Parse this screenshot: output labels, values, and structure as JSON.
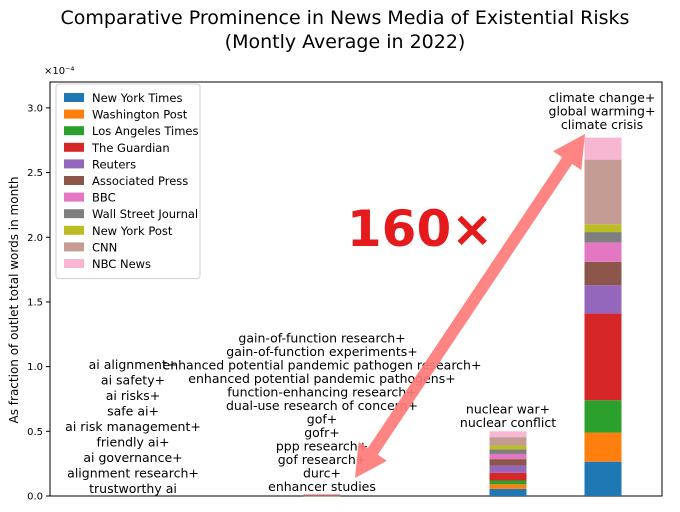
{
  "chart_data": {
    "type": "bar",
    "stacked": true,
    "title": "Comparative Prominence in News Media of Existential Risks",
    "subtitle": "(Montly Average in 2022)",
    "ylabel": "As fraction of outlet total words in month",
    "y_multiplier": "×10⁻⁴",
    "ylim": [
      0,
      3.2
    ],
    "yticks": [
      "0.0",
      "0.5",
      "1.0",
      "1.5",
      "2.0",
      "2.5",
      "3.0"
    ],
    "legend_position": "upper-left",
    "grid": false,
    "series": [
      {
        "name": "New York Times",
        "color": "#1f77b4",
        "values": [
          0.0,
          0.0015,
          0.055,
          0.265
        ]
      },
      {
        "name": "Washington Post",
        "color": "#ff7f0e",
        "values": [
          0.0,
          0.0015,
          0.035,
          0.225
        ]
      },
      {
        "name": "Los Angeles Times",
        "color": "#2ca02c",
        "values": [
          0.0,
          0.0015,
          0.03,
          0.25
        ]
      },
      {
        "name": "The Guardian",
        "color": "#d62728",
        "values": [
          0.0,
          0.0015,
          0.06,
          0.67
        ]
      },
      {
        "name": "Reuters",
        "color": "#9467bd",
        "values": [
          0.0,
          0.0015,
          0.055,
          0.22
        ]
      },
      {
        "name": "Associated Press",
        "color": "#8c564b",
        "values": [
          0.0,
          0.0015,
          0.05,
          0.18
        ]
      },
      {
        "name": "BBC",
        "color": "#e377c2",
        "values": [
          0.0,
          0.0015,
          0.04,
          0.15
        ]
      },
      {
        "name": "Wall Street Journal",
        "color": "#7f7f7f",
        "values": [
          0.0,
          0.0015,
          0.035,
          0.08
        ]
      },
      {
        "name": "New York Post",
        "color": "#bcbd22",
        "values": [
          0.0,
          0.0015,
          0.03,
          0.06
        ]
      },
      {
        "name": "CNN",
        "color": "#c49c94",
        "values": [
          0.0,
          0.0015,
          0.065,
          0.5
        ]
      },
      {
        "name": "NBC News",
        "color": "#f7b6d2",
        "values": [
          0.0,
          0.0015,
          0.045,
          0.17
        ]
      }
    ],
    "bar_labels": [
      [
        "ai alignment+",
        "ai safety+",
        "ai risks+",
        "safe ai+",
        "ai risk management+",
        "friendly ai+",
        "ai governance+",
        "alignment research+",
        "trustworthy ai"
      ],
      [
        "gain-of-function research+",
        "gain-of-function experiments+",
        "enhanced potential pandemic pathogen research+",
        "enhanced potential pandemic pathogens+",
        "function-enhancing research+",
        "dual-use research of concern+",
        "gof+",
        "gofr+",
        "ppp research+",
        "gof research+",
        "durc+",
        "enhancer studies"
      ],
      [
        "nuclear war+",
        "nuclear conflict"
      ],
      [
        "climate change+",
        "global warming+",
        "climate crisis"
      ]
    ],
    "annotation": {
      "text": "160×",
      "color": "#e41a1c",
      "arrow_color": "#ff7b7b"
    }
  }
}
